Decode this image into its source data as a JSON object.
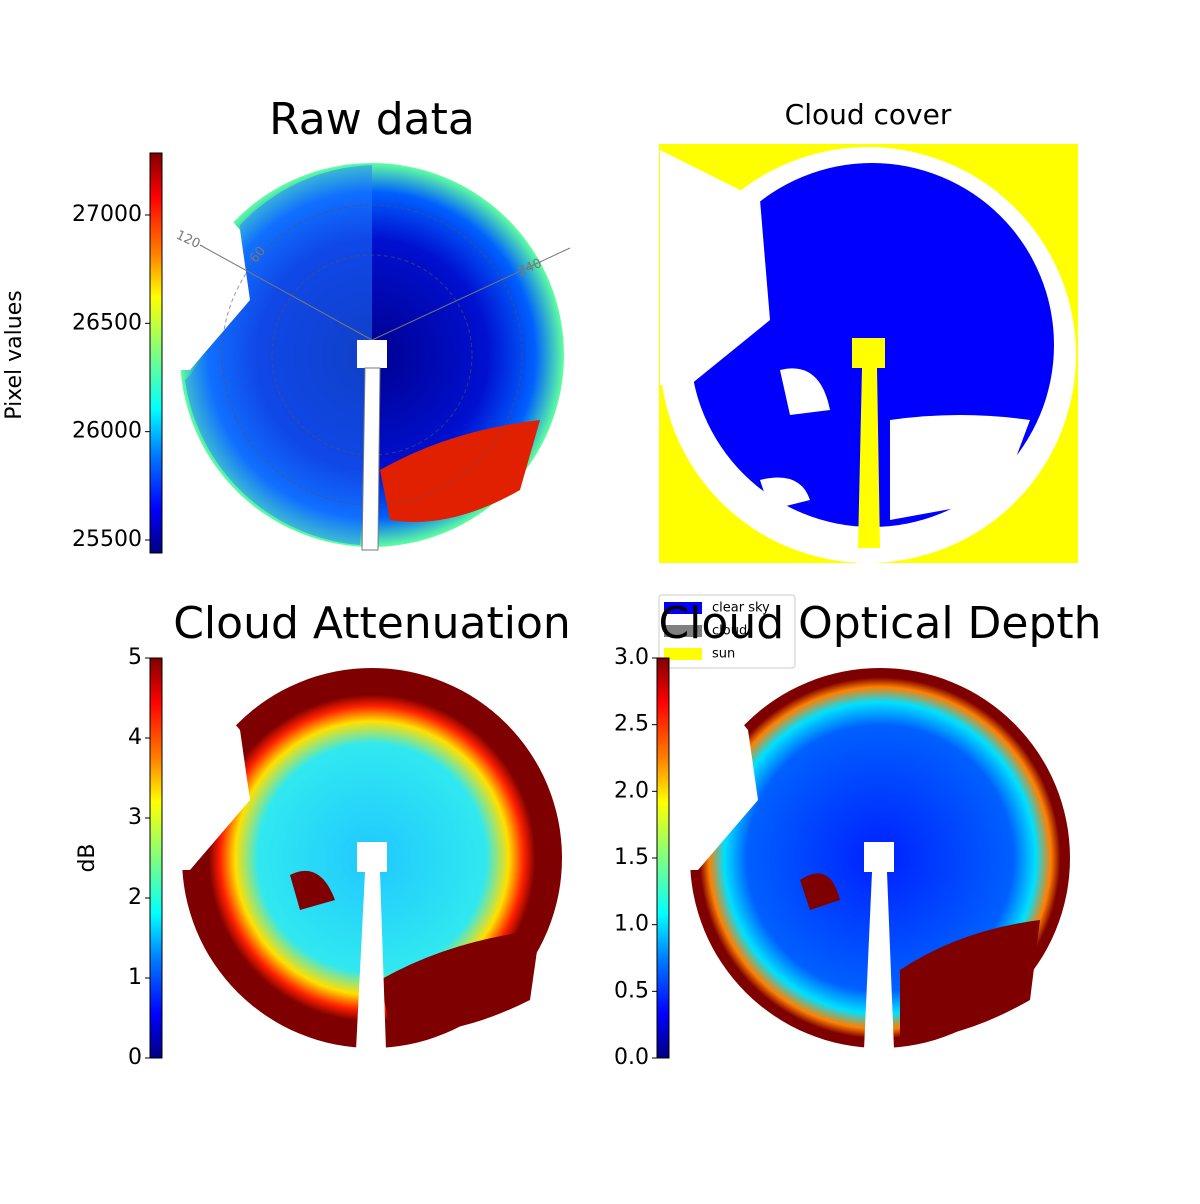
{
  "chart_data": [
    {
      "type": "image",
      "title": "Raw data",
      "ylabel": "Pixel values",
      "colormap": "jet",
      "ylim": [
        25440,
        27286
      ],
      "yticks": [
        25500,
        26000,
        26500,
        27000
      ],
      "annotations": [
        "120",
        "60",
        "240"
      ]
    },
    {
      "type": "image",
      "title": "Cloud cover",
      "series": [
        {
          "name": "clear sky",
          "color": "#0000ff"
        },
        {
          "name": "cloud",
          "color": "#808080"
        },
        {
          "name": "sun",
          "color": "#ffff00"
        }
      ],
      "legend": "lower left"
    },
    {
      "type": "image",
      "title": "Cloud Attenuation",
      "ylabel": "dB",
      "colormap": "jet",
      "ylim": [
        0,
        5
      ],
      "yticks": [
        0,
        1,
        2,
        3,
        4,
        5
      ]
    },
    {
      "type": "image",
      "title": "Cloud Optical Depth",
      "colormap": "jet",
      "ylim": [
        0,
        3
      ],
      "yticks": [
        {
          "value": 0,
          "label": "0.0"
        },
        0.5,
        {
          "value": 1,
          "label": "1.0"
        },
        1.5,
        {
          "value": 2,
          "label": "2.0"
        },
        2.5,
        {
          "value": 3,
          "label": "3.0"
        }
      ]
    }
  ]
}
